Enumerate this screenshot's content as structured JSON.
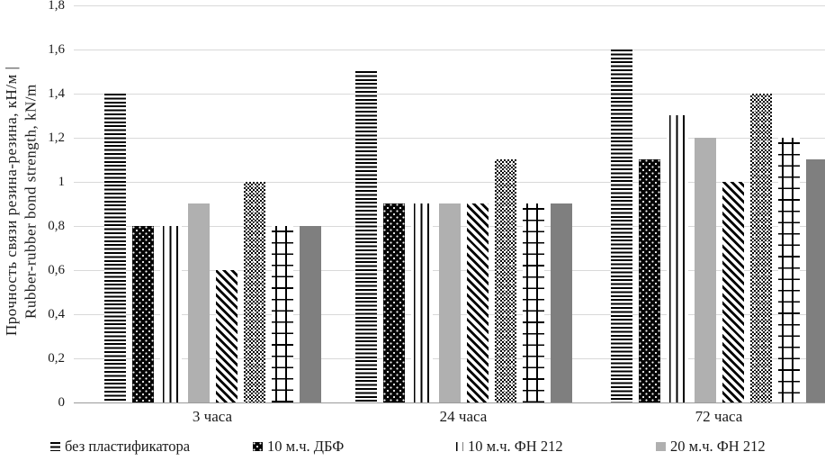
{
  "chart_data": {
    "type": "bar",
    "title": "",
    "categories": [
      "3 часа",
      "24 часа",
      "72 часа"
    ],
    "series": [
      {
        "pattern": "horizontal-stripes",
        "values": [
          1.4,
          1.5,
          1.6
        ]
      },
      {
        "pattern": "black-with-white-dots",
        "values": [
          0.8,
          0.9,
          1.1
        ]
      },
      {
        "pattern": "vertical-lines",
        "values": [
          0.8,
          0.9,
          1.3
        ]
      },
      {
        "pattern": "light-gray-solid",
        "values": [
          0.9,
          0.9,
          1.2
        ]
      },
      {
        "pattern": "diagonal-stripes",
        "values": [
          0.6,
          0.9,
          1.0
        ]
      },
      {
        "pattern": "checkerboard-dots",
        "values": [
          1.0,
          1.1,
          1.4
        ]
      },
      {
        "pattern": "grid-crosshatch",
        "values": [
          0.8,
          0.9,
          1.2
        ]
      },
      {
        "pattern": "dark-gray-solid",
        "values": [
          0.8,
          0.9,
          1.1
        ]
      }
    ],
    "ylabel_line1": "Прочность связи резина-резина, кН/м |",
    "ylabel_line2": "Rubber-rubber bond strength, kN/m",
    "xlabel": "",
    "ylim": [
      0,
      1.8
    ],
    "ytick_step": 0.2,
    "ytick_labels": [
      "0",
      "0,2",
      "0,4",
      "0,6",
      "0,8",
      "1",
      "1,2",
      "1,4",
      "1,6",
      "1,8"
    ],
    "decimal_separator": ",",
    "grid": true,
    "legend_position": "bottom",
    "legend": [
      {
        "label": "без пластификатора",
        "series_index": 0
      },
      {
        "label": "10 м.ч. ДБФ",
        "series_index": 1
      },
      {
        "label": "10  м.ч. ФН 212",
        "series_index": 2
      },
      {
        "label": "20  м.ч. ФН 212",
        "series_index": 3
      }
    ],
    "colors": {
      "pattern_ink": "#000000",
      "light_gray_bar": "#b0b0b0",
      "dark_gray_bar": "#7f7f7f",
      "gridline": "#d9d9d9",
      "axis_line": "#9a9a9a",
      "text": "#1a1a1a"
    }
  }
}
